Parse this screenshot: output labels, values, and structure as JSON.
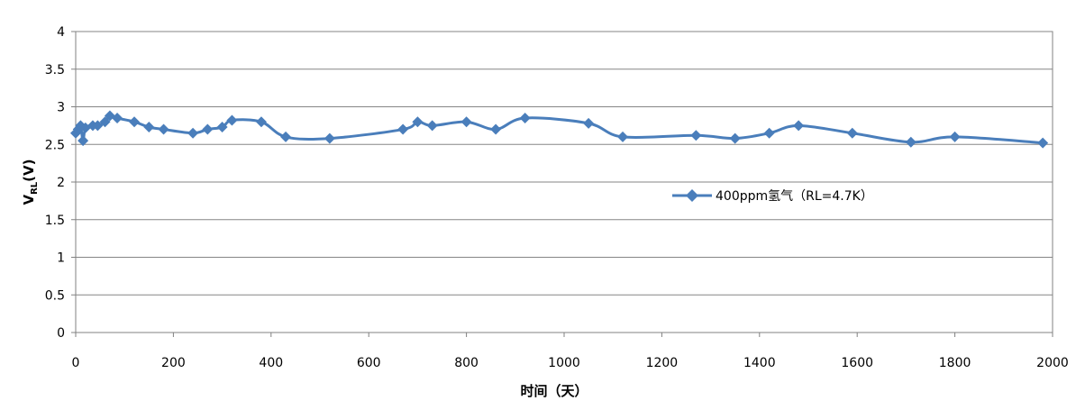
{
  "chart_data": {
    "type": "line",
    "xlabel": "时间（天）",
    "ylabel_main": "V",
    "ylabel_sub": "RL",
    "ylabel_unit": "(V)",
    "xlim": [
      0,
      2000
    ],
    "ylim": [
      0,
      4
    ],
    "xticks": [
      0,
      200,
      400,
      600,
      800,
      1000,
      1200,
      1400,
      1600,
      1800,
      2000
    ],
    "yticks": [
      "0",
      "0.5",
      "1",
      "1.5",
      "2",
      "2.5",
      "3",
      "3.5",
      "4"
    ],
    "ytick_values": [
      0,
      0.5,
      1,
      1.5,
      2,
      2.5,
      3,
      3.5,
      4
    ],
    "grid": true,
    "legend_position": "right",
    "series": [
      {
        "name": "400ppm氢气（RL=4.7K）",
        "color": "#4a7ebb",
        "marker": "diamond",
        "x": [
          0,
          5,
          10,
          15,
          20,
          35,
          45,
          60,
          70,
          85,
          120,
          150,
          180,
          240,
          270,
          300,
          320,
          380,
          430,
          520,
          670,
          700,
          730,
          800,
          860,
          920,
          1050,
          1120,
          1270,
          1350,
          1420,
          1480,
          1590,
          1710,
          1800,
          1980
        ],
        "y": [
          2.65,
          2.7,
          2.75,
          2.55,
          2.72,
          2.75,
          2.75,
          2.8,
          2.88,
          2.85,
          2.8,
          2.73,
          2.7,
          2.65,
          2.7,
          2.73,
          2.82,
          2.8,
          2.6,
          2.58,
          2.7,
          2.8,
          2.75,
          2.8,
          2.7,
          2.85,
          2.78,
          2.6,
          2.62,
          2.58,
          2.65,
          2.75,
          2.65,
          2.53,
          2.6,
          2.52
        ]
      }
    ]
  }
}
